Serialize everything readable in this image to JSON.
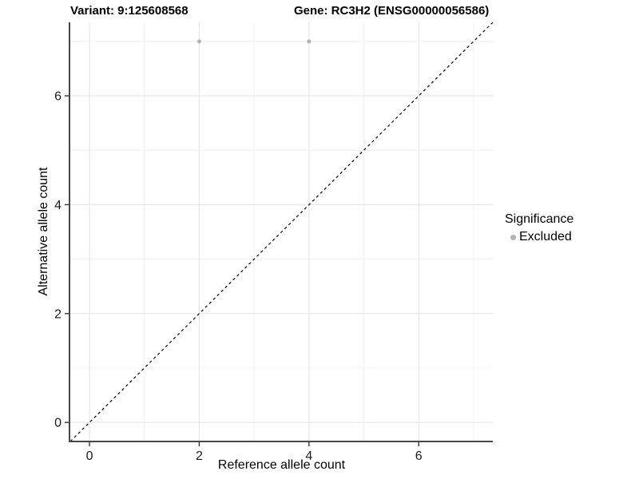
{
  "titles": {
    "left": "Variant: 9:125608568",
    "right": "Gene: RC3H2 (ENSG00000056586)"
  },
  "legend": {
    "title": "Significance",
    "items": [
      {
        "label": "Excluded",
        "color": "#b3b3b3"
      }
    ]
  },
  "colors": {
    "background": "#ffffff",
    "grid_major": "#e3e3e3",
    "grid_minor": "#f0f0f0",
    "axis_line": "#474747",
    "tick_mark": "#333333",
    "tick_label": "#1a1a1a",
    "point": "#b3b3b3",
    "reference_line": "#000000"
  },
  "chart_data": {
    "type": "scatter",
    "title_left": "Variant: 9:125608568",
    "title_right": "Gene: RC3H2 (ENSG00000056586)",
    "xlabel": "Reference allele count",
    "ylabel": "Alternative allele count",
    "xlim": [
      -0.35,
      7.35
    ],
    "ylim": [
      -0.35,
      7.35
    ],
    "x_ticks": [
      0,
      2,
      4,
      6
    ],
    "y_ticks": [
      0,
      2,
      4,
      6
    ],
    "x_minor": [
      1,
      3,
      5,
      7
    ],
    "y_minor": [
      1,
      3,
      5,
      7
    ],
    "grid": true,
    "legend_position": "right",
    "series": [
      {
        "name": "Excluded",
        "color": "#b3b3b3",
        "points": [
          [
            2,
            7
          ],
          [
            4,
            7
          ]
        ]
      }
    ],
    "reference_line": {
      "style": "dashed",
      "slope": 1,
      "intercept": 0,
      "color": "#000000"
    }
  }
}
